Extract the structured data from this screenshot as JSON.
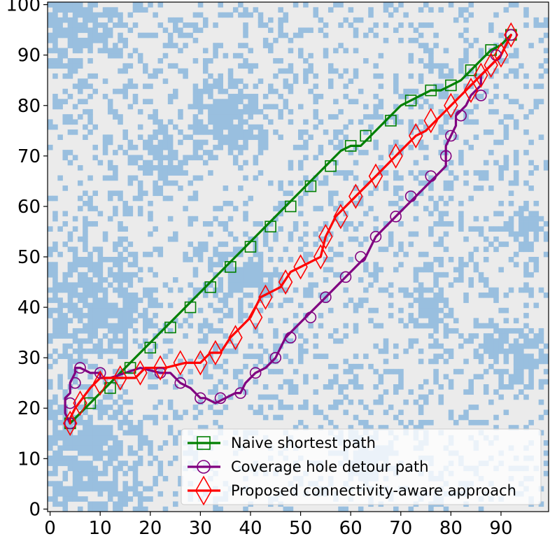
{
  "chart_data": {
    "type": "line",
    "title": "",
    "xlabel": "",
    "ylabel": "",
    "xlim": [
      -0.5,
      99.5
    ],
    "ylim": [
      -0.5,
      100.5
    ],
    "x_ticks": [
      0,
      10,
      20,
      30,
      40,
      50,
      60,
      70,
      80,
      90
    ],
    "y_ticks": [
      0,
      10,
      20,
      30,
      40,
      50,
      60,
      70,
      80,
      90,
      100
    ],
    "grid": false,
    "legend_position": "lower-right",
    "background": {
      "kind": "coverage-map",
      "covered_color": "#99bfdf",
      "uncovered_color": "#ebebeb",
      "resolution": [
        100,
        100
      ]
    },
    "series": [
      {
        "name": "Naive shortest path",
        "color": "#008000",
        "marker": "square",
        "x": [
          4,
          4,
          12,
          20,
          28,
          36,
          44,
          52,
          58,
          60,
          62,
          64,
          70,
          72,
          76,
          78,
          80,
          82,
          86,
          88,
          90,
          92
        ],
        "y": [
          17,
          17,
          25,
          33,
          41,
          49,
          57,
          65,
          71,
          72,
          72,
          74,
          80,
          81,
          83,
          83,
          84,
          85,
          89,
          91,
          92,
          94
        ],
        "marker_x": [
          4,
          8,
          12,
          16,
          20,
          24,
          28,
          32,
          36,
          40,
          44,
          48,
          52,
          56,
          60,
          63,
          68,
          72,
          76,
          80,
          84,
          88,
          92
        ],
        "marker_y": [
          17,
          21,
          24,
          28,
          32,
          36,
          40,
          44,
          48,
          52,
          56,
          60,
          64,
          68,
          72,
          74,
          77,
          81,
          83,
          84,
          87,
          91,
          94
        ]
      },
      {
        "name": "Coverage hole detour path",
        "color": "#800080",
        "marker": "circle",
        "x": [
          4,
          3,
          3,
          4,
          4,
          5,
          5,
          6,
          8,
          10,
          10,
          12,
          18,
          22,
          24,
          26,
          28,
          30,
          31,
          33,
          35,
          37,
          38,
          39,
          41,
          43,
          45,
          47,
          49,
          51,
          53,
          55,
          57,
          59,
          61,
          63,
          65,
          67,
          69,
          71,
          73,
          75,
          77,
          79,
          79,
          80,
          81,
          81,
          83,
          84,
          86,
          86,
          88,
          90,
          92
        ],
        "y": [
          17,
          19,
          22,
          23,
          25,
          27,
          28,
          28,
          27,
          27,
          26,
          26,
          28,
          27,
          27,
          25,
          24,
          22,
          22,
          21,
          22,
          23,
          23,
          25,
          27,
          28,
          30,
          34,
          36,
          38,
          40,
          42,
          44,
          46,
          48,
          50,
          54,
          56,
          58,
          60,
          62,
          64,
          66,
          68,
          72,
          74,
          76,
          78,
          80,
          82,
          84,
          86,
          88,
          90,
          94
        ],
        "marker_x": [
          4,
          4,
          5,
          6,
          10,
          22,
          26,
          30,
          34,
          38,
          41,
          45,
          48,
          52,
          55,
          59,
          62,
          65,
          69,
          72,
          76,
          79,
          80,
          82,
          86,
          89,
          92
        ],
        "marker_y": [
          17,
          21,
          25,
          28,
          27,
          27,
          25,
          22,
          22,
          23,
          27,
          30,
          34,
          38,
          42,
          46,
          50,
          54,
          58,
          62,
          66,
          70,
          74,
          78,
          82,
          90,
          94
        ]
      },
      {
        "name": "Proposed connectivity-aware approach",
        "color": "#ff0000",
        "marker": "diamond",
        "x": [
          4,
          4,
          5,
          8,
          10,
          14,
          17,
          19,
          22,
          23,
          27,
          30,
          32,
          34,
          36,
          38,
          40,
          42,
          44,
          46,
          48,
          50,
          52,
          54,
          55,
          57,
          59,
          61,
          63,
          65,
          67,
          69,
          71,
          73,
          75,
          77,
          79,
          81,
          83,
          84,
          86,
          88,
          90,
          92
        ],
        "y": [
          17,
          18,
          20,
          24,
          26,
          26,
          26,
          28,
          28,
          28,
          29,
          29,
          31,
          31,
          34,
          36,
          38,
          42,
          43,
          44,
          47,
          48,
          49,
          50,
          54,
          58,
          60,
          62,
          64,
          66,
          68,
          70,
          72,
          74,
          75,
          77,
          79,
          81,
          83,
          84,
          86,
          88,
          90,
          94
        ],
        "marker_x": [
          4,
          6,
          10,
          14,
          18,
          22,
          26,
          30,
          33,
          37,
          41,
          43,
          47,
          50,
          54,
          55,
          58,
          61,
          65,
          69,
          73,
          76,
          80,
          84,
          86,
          88,
          90,
          92
        ],
        "marker_y": [
          17,
          21,
          25,
          26,
          27,
          28,
          29,
          29,
          31,
          34,
          38,
          42,
          45,
          48,
          50,
          54,
          58,
          62,
          66,
          70,
          74,
          77,
          80,
          83,
          86,
          88,
          90,
          94
        ]
      }
    ]
  }
}
